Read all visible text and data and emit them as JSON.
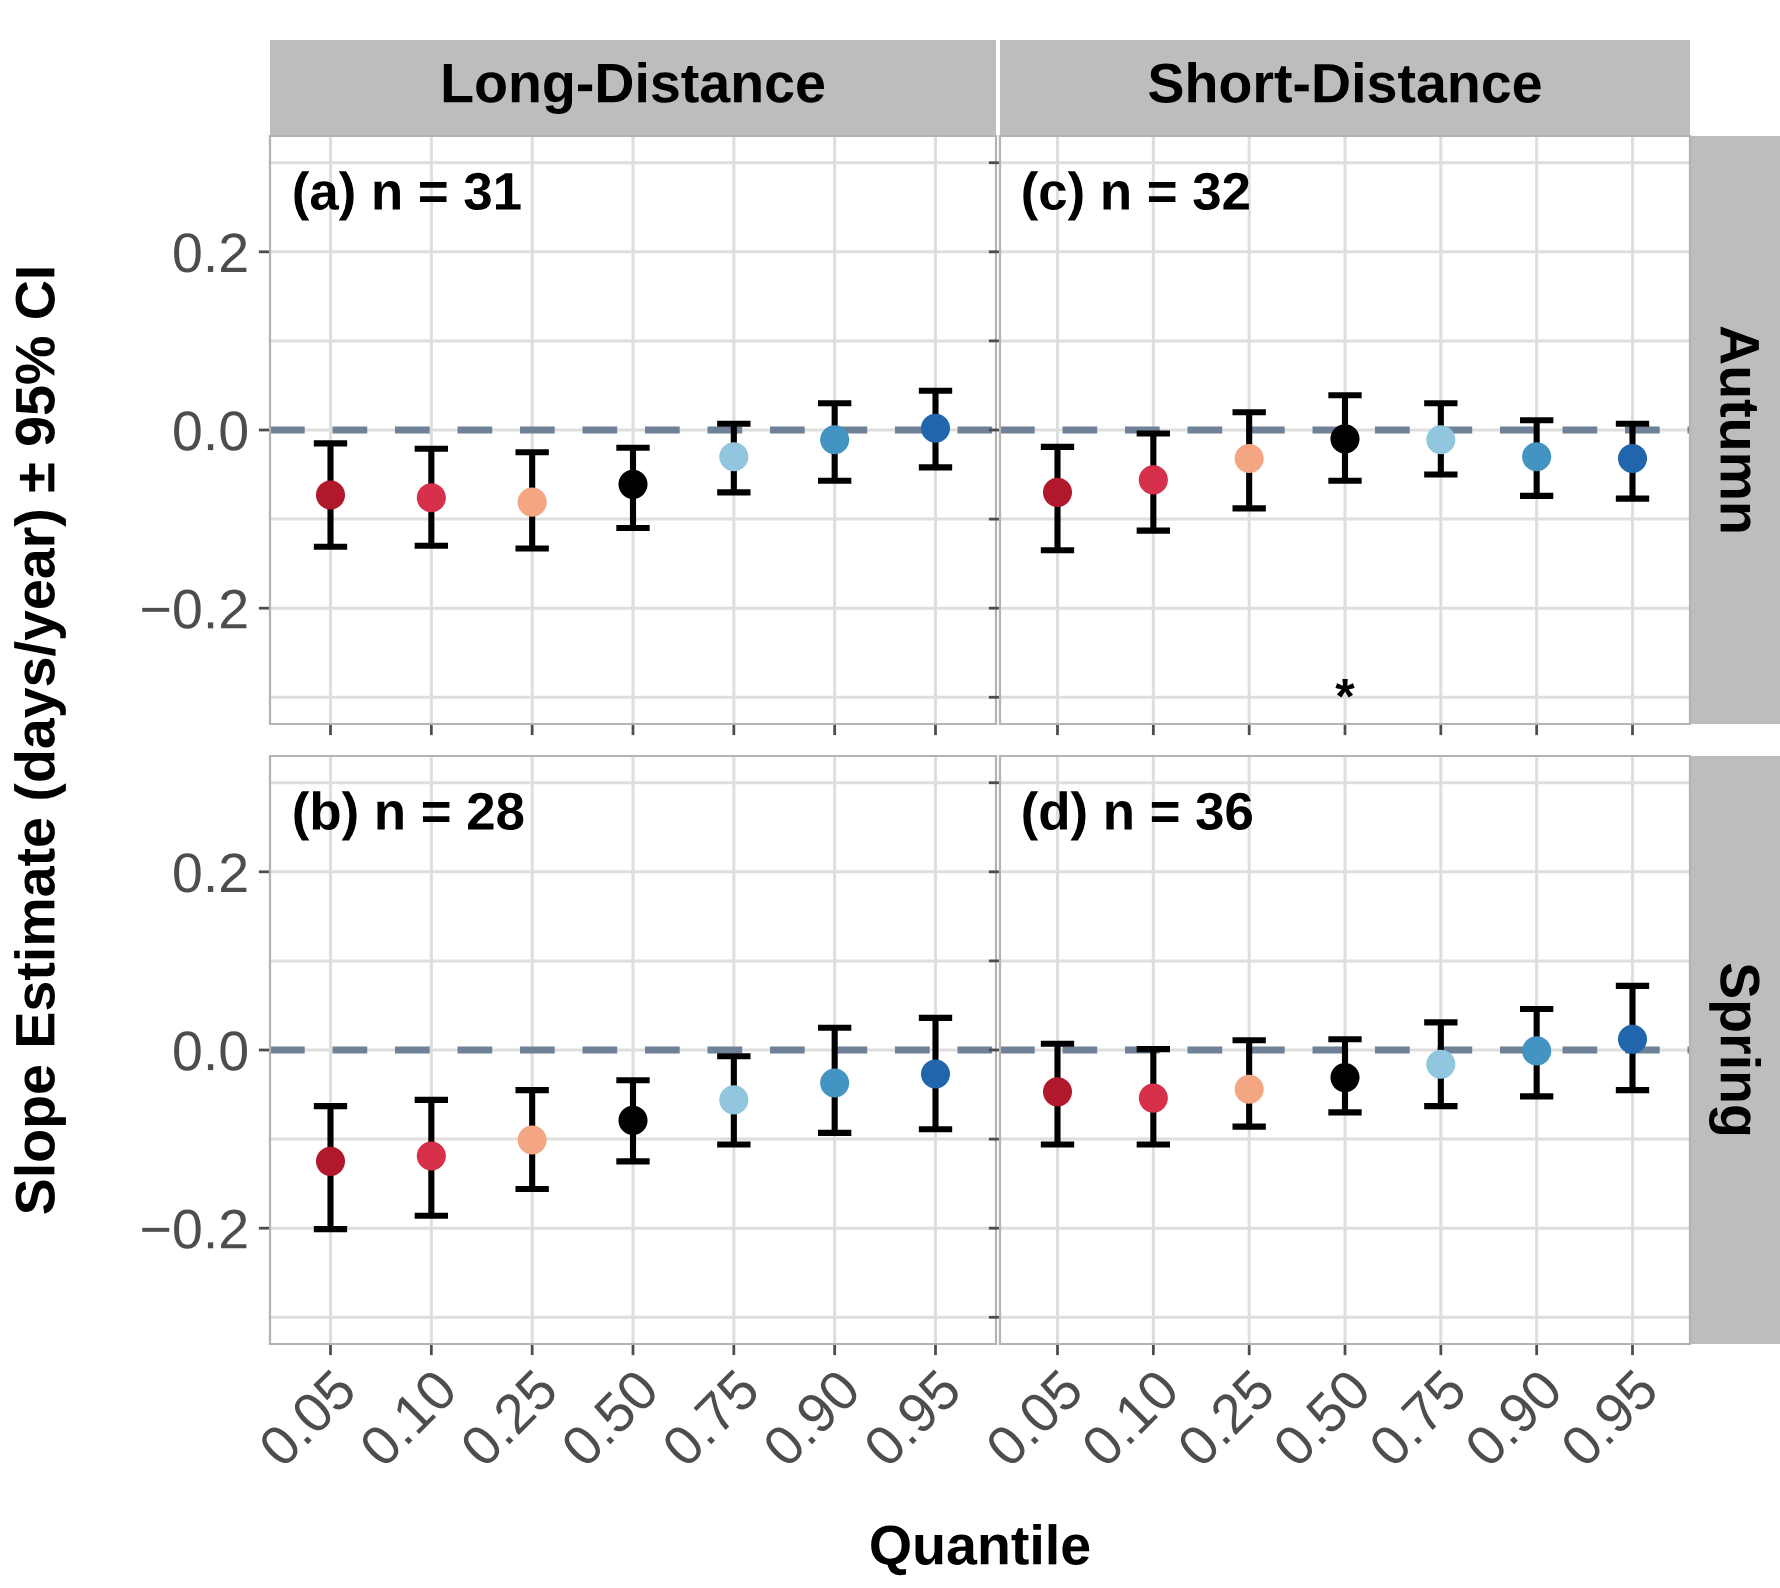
{
  "chart_data": [
    {
      "type": "scatter",
      "title": "Long-Distance",
      "ylabel": "Slope Estimate (days/year) ± 95% CI",
      "annotations": [
        "(a) n = 31"
      ],
      "categories": [
        "0.05",
        "0.10",
        "0.25",
        "0.50",
        "0.75",
        "0.90",
        "0.95"
      ],
      "series": [
        {
          "colors": [
            "#b2182b",
            "#d6304b",
            "#f4a582",
            "#000000",
            "#92c5de",
            "#4393c3",
            "#2166ac"
          ],
          "values": [
            -0.073,
            -0.076,
            -0.081,
            -0.061,
            -0.03,
            -0.011,
            0.002
          ],
          "errors": [
            [
              -0.131,
              -0.015
            ],
            [
              -0.13,
              -0.021
            ],
            [
              -0.133,
              -0.025
            ],
            [
              -0.11,
              -0.02
            ],
            [
              -0.07,
              0.007
            ],
            [
              -0.057,
              0.03
            ],
            [
              -0.042,
              0.044
            ]
          ]
        }
      ],
      "ylim": [
        -0.33,
        0.33
      ],
      "yticks": [
        {
          "value": -0.3,
          "label": null
        },
        {
          "value": -0.2,
          "label": "−0.2"
        },
        {
          "value": -0.1,
          "label": null
        },
        {
          "value": 0.0,
          "label": "0.0"
        },
        {
          "value": 0.1,
          "label": null
        },
        {
          "value": 0.2,
          "label": "0.2"
        },
        {
          "value": 0.3,
          "label": null
        }
      ],
      "ref_lines": [
        {
          "axis": "y",
          "value": 0,
          "color": "#6f8196",
          "line_style": "dashed"
        }
      ],
      "grid": true,
      "marker": "circle",
      "tick_labels": "y"
    },
    {
      "type": "scatter",
      "title": "Short-Distance",
      "y2label": "Autumn",
      "annotations": [
        "(c) n = 32",
        "*"
      ],
      "categories": [
        "0.05",
        "0.10",
        "0.25",
        "0.50",
        "0.75",
        "0.90",
        "0.95"
      ],
      "series": [
        {
          "colors": [
            "#b2182b",
            "#d6304b",
            "#f4a582",
            "#000000",
            "#92c5de",
            "#4393c3",
            "#2166ac"
          ],
          "values": [
            -0.07,
            -0.056,
            -0.032,
            -0.01,
            -0.011,
            -0.03,
            -0.032
          ],
          "errors": [
            [
              -0.135,
              -0.019
            ],
            [
              -0.113,
              -0.004
            ],
            [
              -0.088,
              0.02
            ],
            [
              -0.057,
              0.039
            ],
            [
              -0.05,
              0.03
            ],
            [
              -0.074,
              0.011
            ],
            [
              -0.077,
              0.007
            ]
          ]
        }
      ],
      "ylim": [
        -0.33,
        0.33
      ],
      "yticks": [
        {
          "value": -0.3,
          "label": null
        },
        {
          "value": -0.2,
          "label": null
        },
        {
          "value": -0.1,
          "label": null
        },
        {
          "value": 0.0,
          "label": null
        },
        {
          "value": 0.1,
          "label": null
        },
        {
          "value": 0.2,
          "label": null
        },
        {
          "value": 0.3,
          "label": null
        }
      ],
      "ref_lines": [
        {
          "axis": "y",
          "value": 0,
          "color": "#6f8196",
          "line_style": "dashed"
        }
      ],
      "grid": true,
      "marker": "circle",
      "tick_labels": false
    },
    {
      "type": "scatter",
      "xlabel": "Quantile",
      "annotations": [
        "(b) n = 28"
      ],
      "categories": [
        "0.05",
        "0.10",
        "0.25",
        "0.50",
        "0.75",
        "0.90",
        "0.95"
      ],
      "series": [
        {
          "colors": [
            "#b2182b",
            "#d6304b",
            "#f4a582",
            "#000000",
            "#92c5de",
            "#4393c3",
            "#2166ac"
          ],
          "values": [
            -0.125,
            -0.119,
            -0.101,
            -0.079,
            -0.056,
            -0.037,
            -0.027
          ],
          "errors": [
            [
              -0.201,
              -0.063
            ],
            [
              -0.186,
              -0.056
            ],
            [
              -0.156,
              -0.045
            ],
            [
              -0.125,
              -0.034
            ],
            [
              -0.106,
              -0.007
            ],
            [
              -0.093,
              0.025
            ],
            [
              -0.089,
              0.036
            ]
          ]
        }
      ],
      "ylim": [
        -0.33,
        0.33
      ],
      "yticks": [
        {
          "value": -0.3,
          "label": null
        },
        {
          "value": -0.2,
          "label": "−0.2"
        },
        {
          "value": -0.1,
          "label": null
        },
        {
          "value": 0.0,
          "label": "0.0"
        },
        {
          "value": 0.1,
          "label": null
        },
        {
          "value": 0.2,
          "label": "0.2"
        },
        {
          "value": 0.3,
          "label": null
        }
      ],
      "ref_lines": [
        {
          "axis": "y",
          "value": 0,
          "color": "#6f8196",
          "line_style": "dashed"
        }
      ],
      "grid": true,
      "marker": "circle"
    },
    {
      "type": "scatter",
      "y2label": "Spring",
      "annotations": [
        "(d) n = 36"
      ],
      "categories": [
        "0.05",
        "0.10",
        "0.25",
        "0.50",
        "0.75",
        "0.90",
        "0.95"
      ],
      "series": [
        {
          "colors": [
            "#b2182b",
            "#d6304b",
            "#f4a582",
            "#000000",
            "#92c5de",
            "#4393c3",
            "#2166ac"
          ],
          "values": [
            -0.047,
            -0.054,
            -0.044,
            -0.031,
            -0.016,
            -0.001,
            0.012
          ],
          "errors": [
            [
              -0.106,
              0.007
            ],
            [
              -0.106,
              0.001
            ],
            [
              -0.086,
              0.011
            ],
            [
              -0.07,
              0.012
            ],
            [
              -0.063,
              0.031
            ],
            [
              -0.052,
              0.046
            ],
            [
              -0.045,
              0.072
            ]
          ]
        }
      ],
      "ylim": [
        -0.33,
        0.33
      ],
      "yticks": [
        {
          "value": -0.3,
          "label": null
        },
        {
          "value": -0.2,
          "label": null
        },
        {
          "value": -0.1,
          "label": null
        },
        {
          "value": 0.0,
          "label": null
        },
        {
          "value": 0.1,
          "label": null
        },
        {
          "value": 0.2,
          "label": null
        },
        {
          "value": 0.3,
          "label": null
        }
      ],
      "ref_lines": [
        {
          "axis": "y",
          "value": 0,
          "color": "#6f8196",
          "line_style": "dashed"
        }
      ],
      "grid": true,
      "marker": "circle",
      "tick_labels": "x"
    }
  ]
}
